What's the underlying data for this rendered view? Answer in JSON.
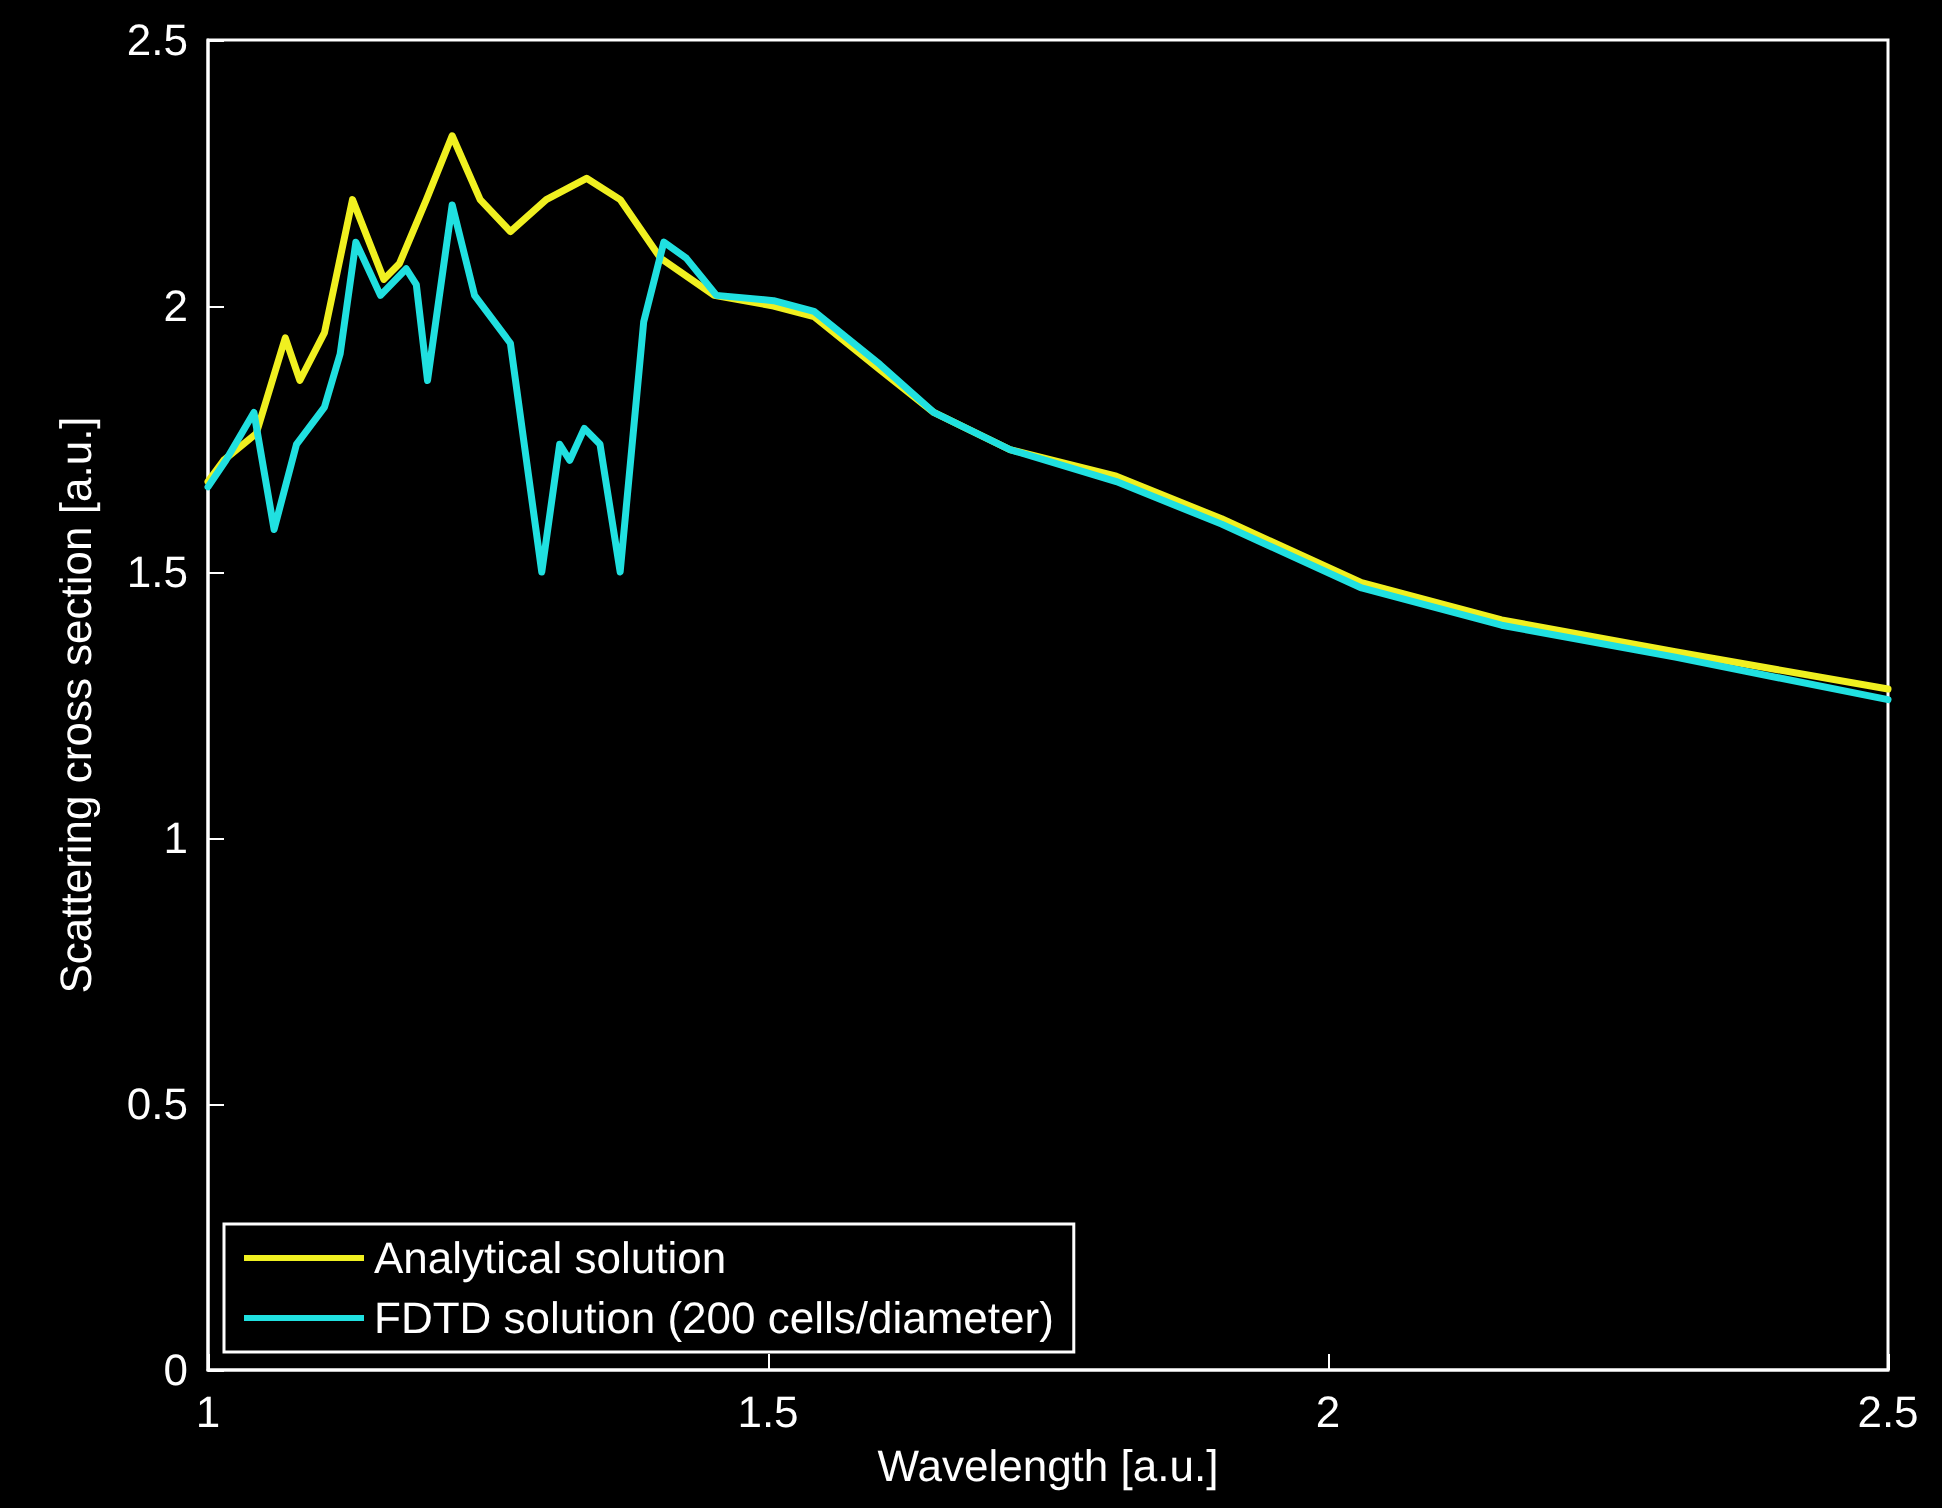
{
  "chart_data": {
    "type": "line",
    "xlabel": "Wavelength [a.u.]",
    "ylabel": "Scattering cross section [a.u.]",
    "xlim": [
      1,
      2.5
    ],
    "xticks": [
      1,
      1.5,
      2,
      2.5
    ],
    "ylim": [
      0,
      2.5
    ],
    "yticks": [
      0,
      0.5,
      1,
      1.5,
      2,
      2.5
    ],
    "grid": false,
    "legend": "bottom left",
    "marker": "none",
    "line_style": "solid",
    "series": [
      {
        "name": "Analytical solution",
        "color": "#f0f020",
        "x": [
          1.0,
          1.014,
          1.043,
          1.069,
          1.082,
          1.104,
          1.129,
          1.157,
          1.171,
          1.195,
          1.218,
          1.243,
          1.27,
          1.302,
          1.338,
          1.368,
          1.404,
          1.452,
          1.505,
          1.541,
          1.6,
          1.648,
          1.716,
          1.811,
          1.905,
          2.03,
          2.155,
          2.31,
          2.5
        ],
        "values": [
          1.67,
          1.71,
          1.76,
          1.94,
          1.86,
          1.95,
          2.2,
          2.05,
          2.08,
          2.2,
          2.32,
          2.2,
          2.14,
          2.2,
          2.24,
          2.2,
          2.09,
          2.02,
          2.0,
          1.98,
          1.88,
          1.8,
          1.73,
          1.68,
          1.6,
          1.48,
          1.41,
          1.35,
          1.28
        ]
      },
      {
        "name": "FDTD solution (200 cells/diameter)",
        "color": "#20e0e0",
        "x": [
          1.0,
          1.016,
          1.041,
          1.059,
          1.079,
          1.104,
          1.118,
          1.132,
          1.154,
          1.177,
          1.186,
          1.196,
          1.218,
          1.238,
          1.27,
          1.298,
          1.314,
          1.323,
          1.336,
          1.35,
          1.368,
          1.389,
          1.407,
          1.427,
          1.454,
          1.505,
          1.541,
          1.6,
          1.648,
          1.716,
          1.811,
          1.905,
          2.03,
          2.155,
          2.31,
          2.5
        ],
        "values": [
          1.66,
          1.71,
          1.8,
          1.58,
          1.74,
          1.81,
          1.91,
          2.12,
          2.02,
          2.07,
          2.04,
          1.86,
          2.19,
          2.02,
          1.93,
          1.5,
          1.74,
          1.71,
          1.77,
          1.74,
          1.5,
          1.97,
          2.12,
          2.09,
          2.02,
          2.01,
          1.99,
          1.89,
          1.8,
          1.73,
          1.67,
          1.59,
          1.47,
          1.4,
          1.34,
          1.26
        ]
      }
    ]
  }
}
